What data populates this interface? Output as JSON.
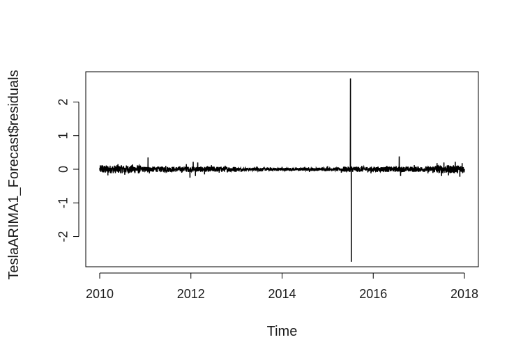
{
  "chart_data": {
    "type": "line",
    "title": "",
    "xlabel": "Time",
    "ylabel": "TeslaARIMA1_Forecast$residuals",
    "xlim": [
      2010,
      2018
    ],
    "ylim": [
      -2.9,
      2.9
    ],
    "x_ticks": [
      2010,
      2012,
      2014,
      2016,
      2018
    ],
    "x_tick_labels": [
      "2010",
      "2012",
      "2014",
      "2016",
      "2018"
    ],
    "y_ticks": [
      -2,
      -1,
      0,
      1,
      2
    ],
    "y_tick_labels": [
      "-2",
      "-1",
      "0",
      "1",
      "2"
    ],
    "grid": false,
    "legend": "none",
    "series": [
      {
        "color": "#000000",
        "baseline": 0,
        "noise_amplitude": 0.08,
        "spikes": [
          {
            "x": 2010.05,
            "y": 0.12
          },
          {
            "x": 2010.18,
            "y": -0.18
          },
          {
            "x": 2010.4,
            "y": 0.15
          },
          {
            "x": 2010.55,
            "y": -0.16
          },
          {
            "x": 2010.72,
            "y": 0.14
          },
          {
            "x": 2010.85,
            "y": -0.12
          },
          {
            "x": 2011.06,
            "y": 0.35
          },
          {
            "x": 2011.09,
            "y": -0.12
          },
          {
            "x": 2011.45,
            "y": 0.1
          },
          {
            "x": 2011.8,
            "y": -0.1
          },
          {
            "x": 2011.9,
            "y": 0.15
          },
          {
            "x": 2011.98,
            "y": -0.25
          },
          {
            "x": 2012.05,
            "y": 0.22
          },
          {
            "x": 2012.1,
            "y": -0.2
          },
          {
            "x": 2012.15,
            "y": 0.2
          },
          {
            "x": 2012.3,
            "y": -0.15
          },
          {
            "x": 2012.45,
            "y": 0.12
          },
          {
            "x": 2012.62,
            "y": -0.1
          },
          {
            "x": 2012.75,
            "y": 0.1
          },
          {
            "x": 2013.1,
            "y": -0.08
          },
          {
            "x": 2013.45,
            "y": 0.08
          },
          {
            "x": 2013.52,
            "y": -0.06
          },
          {
            "x": 2014.0,
            "y": 0.07
          },
          {
            "x": 2014.6,
            "y": -0.08
          },
          {
            "x": 2015.0,
            "y": 0.09
          },
          {
            "x": 2015.3,
            "y": -0.1
          },
          {
            "x": 2015.5,
            "y": 2.7
          },
          {
            "x": 2015.52,
            "y": -2.75
          },
          {
            "x": 2015.75,
            "y": 0.1
          },
          {
            "x": 2015.95,
            "y": -0.12
          },
          {
            "x": 2016.3,
            "y": 0.1
          },
          {
            "x": 2016.57,
            "y": 0.38
          },
          {
            "x": 2016.6,
            "y": -0.2
          },
          {
            "x": 2016.9,
            "y": 0.12
          },
          {
            "x": 2017.2,
            "y": -0.12
          },
          {
            "x": 2017.4,
            "y": 0.18
          },
          {
            "x": 2017.5,
            "y": -0.2
          },
          {
            "x": 2017.55,
            "y": 0.2
          },
          {
            "x": 2017.65,
            "y": -0.18
          },
          {
            "x": 2017.8,
            "y": 0.22
          },
          {
            "x": 2017.9,
            "y": -0.22
          },
          {
            "x": 2017.95,
            "y": 0.18
          }
        ]
      }
    ]
  }
}
